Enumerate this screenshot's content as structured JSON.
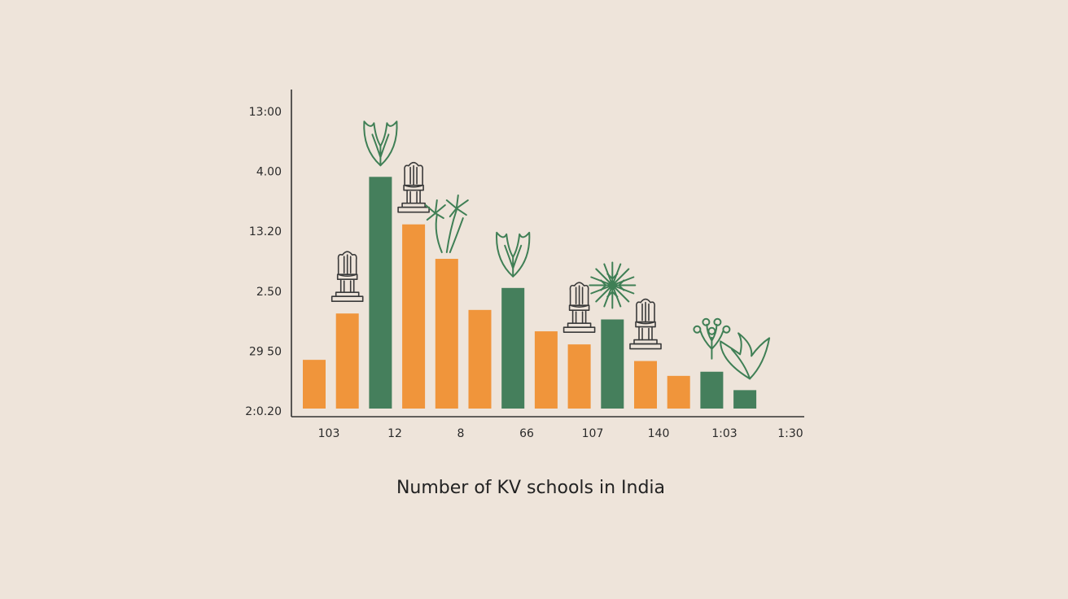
{
  "chart_data": {
    "type": "bar",
    "xlabel": "Number of KV schools in India",
    "ylabel": "",
    "ytick_labels": [
      "13:00",
      "4.00",
      "13.20",
      "2.50",
      "29 50",
      "2:0.20"
    ],
    "xtick_labels": [
      "103",
      "12",
      "8",
      "66",
      "107",
      "140",
      "1:03",
      "1:30"
    ],
    "ylim": [
      0,
      5
    ],
    "values": [
      0.82,
      1.6,
      3.9,
      3.1,
      2.52,
      1.66,
      2.03,
      1.3,
      1.08,
      1.5,
      0.8,
      0.55,
      0.62,
      0.31
    ],
    "colors": [
      "#F0953B",
      "#F0953B",
      "#457F5C",
      "#F0953B",
      "#F0953B",
      "#F0953B",
      "#457F5C",
      "#F0953B",
      "#F0953B",
      "#457F5C",
      "#F0953B",
      "#F0953B",
      "#457F5C",
      "#457F5C"
    ],
    "icons": [
      "",
      "emblem-icon",
      "lotus-icon",
      "emblem-icon",
      "palm-tree-icon",
      "",
      "lotus-icon",
      "",
      "emblem-icon",
      "banyan-tree-icon",
      "emblem-icon",
      "",
      "flower-bush-icon",
      "leaf-icon"
    ],
    "grid": false,
    "legend": "none"
  }
}
